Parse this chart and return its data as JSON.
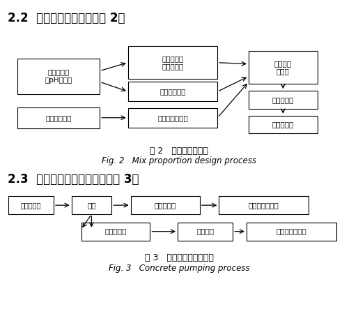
{
  "bg_color": "#ffffff",
  "title_22": "2.2  配合比设计流程（见图 2）",
  "title_23": "2.3  混凝土泵送施工流程（见图 3）",
  "fig2_caption_cn": "图 2   配合比设计流程",
  "fig2_caption_en": "Fig. 2   Mix proportion design process",
  "fig3_caption_cn": "图 3   混凝土泵送施工流程",
  "fig3_caption_en": "Fig. 3   Concrete pumping process",
  "box_bg": "#ffffff",
  "box_edge": "#000000",
  "text_color": "#000000",
  "arrow_color": "#000000"
}
